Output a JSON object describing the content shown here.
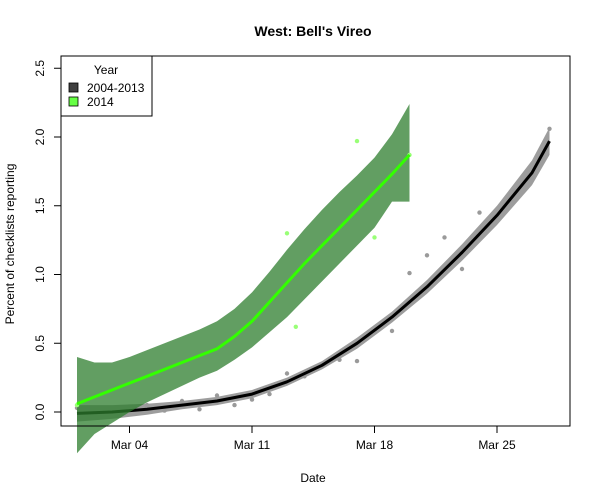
{
  "chart_data": {
    "type": "line",
    "title": "West: Bell's Vireo",
    "xlabel": "Date",
    "ylabel": "Percent of checklists reporting",
    "xlim": [
      0,
      28
    ],
    "ylim": [
      -0.1,
      2.6
    ],
    "x_ticks": [
      {
        "pos": 3,
        "label": "Mar 04"
      },
      {
        "pos": 10,
        "label": "Mar 11"
      },
      {
        "pos": 17,
        "label": "Mar 18"
      },
      {
        "pos": 24,
        "label": "Mar 25"
      }
    ],
    "y_ticks": [
      0.0,
      0.5,
      1.0,
      1.5,
      2.0,
      2.5
    ],
    "y_tick_labels": [
      "0.0",
      "0.5",
      "1.0",
      "1.5",
      "2.0",
      "2.5"
    ],
    "legend": {
      "title": "Year",
      "placement": "top-left",
      "entries": [
        {
          "label": "2004-2013",
          "color": "#3f3f3f"
        },
        {
          "label": "2014",
          "color": "#66ff44"
        }
      ]
    },
    "series": [
      {
        "name": "2004-2013",
        "color": "#000000",
        "band_color": "#8c8c8c",
        "point_color": "#9a9a9a",
        "points": [
          [
            0,
            0.03
          ],
          [
            1,
            0.01
          ],
          [
            3,
            0.02
          ],
          [
            4,
            0.05
          ],
          [
            5,
            0.01
          ],
          [
            6,
            0.08
          ],
          [
            7,
            0.02
          ],
          [
            8,
            0.12
          ],
          [
            9,
            0.05
          ],
          [
            10,
            0.09
          ],
          [
            11,
            0.13
          ],
          [
            12,
            0.28
          ],
          [
            13,
            0.26
          ],
          [
            15,
            0.38
          ],
          [
            16,
            0.37
          ],
          [
            17,
            0.59
          ],
          [
            18,
            0.59
          ],
          [
            19,
            1.01
          ],
          [
            20,
            1.14
          ],
          [
            21,
            1.27
          ],
          [
            22,
            1.04
          ],
          [
            23,
            1.45
          ],
          [
            25,
            1.61
          ],
          [
            27,
            2.06
          ]
        ],
        "fit_x": [
          0,
          2,
          4,
          6,
          8,
          10,
          12,
          14,
          16,
          18,
          20,
          22,
          24,
          26,
          27
        ],
        "fit_y": [
          -0.01,
          0.0,
          0.02,
          0.05,
          0.08,
          0.13,
          0.22,
          0.34,
          0.5,
          0.69,
          0.91,
          1.16,
          1.43,
          1.74,
          1.97
        ],
        "band_lower": [
          -0.07,
          -0.05,
          -0.02,
          0.02,
          0.05,
          0.1,
          0.19,
          0.31,
          0.46,
          0.65,
          0.86,
          1.1,
          1.36,
          1.65,
          1.87
        ],
        "band_upper": [
          0.05,
          0.05,
          0.06,
          0.08,
          0.11,
          0.16,
          0.25,
          0.37,
          0.54,
          0.73,
          0.96,
          1.22,
          1.5,
          1.83,
          2.07
        ]
      },
      {
        "name": "2014",
        "color": "#33ff00",
        "band_color": "#2e7d2e",
        "point_color": "#99ff77",
        "points": [
          [
            0,
            0.05
          ],
          [
            12,
            1.3
          ],
          [
            12.5,
            0.62
          ],
          [
            16,
            1.97
          ],
          [
            17,
            1.27
          ],
          [
            19,
            1.87
          ]
        ],
        "fit_x": [
          0,
          1,
          2,
          3,
          4,
          5,
          6,
          7,
          8,
          9,
          10,
          11,
          12,
          13,
          14,
          15,
          16,
          17,
          18,
          19
        ],
        "fit_y": [
          0.06,
          0.11,
          0.16,
          0.21,
          0.26,
          0.31,
          0.36,
          0.41,
          0.46,
          0.55,
          0.66,
          0.8,
          0.94,
          1.08,
          1.21,
          1.34,
          1.47,
          1.6,
          1.73,
          1.87
        ],
        "band_lower": [
          -0.3,
          -0.16,
          -0.08,
          0.0,
          0.07,
          0.13,
          0.19,
          0.25,
          0.3,
          0.38,
          0.47,
          0.58,
          0.69,
          0.82,
          0.95,
          1.08,
          1.21,
          1.34,
          1.53,
          1.53
        ],
        "band_upper": [
          0.4,
          0.36,
          0.36,
          0.4,
          0.45,
          0.5,
          0.55,
          0.6,
          0.66,
          0.75,
          0.87,
          1.02,
          1.18,
          1.33,
          1.47,
          1.6,
          1.72,
          1.85,
          2.02,
          2.24
        ]
      }
    ]
  }
}
